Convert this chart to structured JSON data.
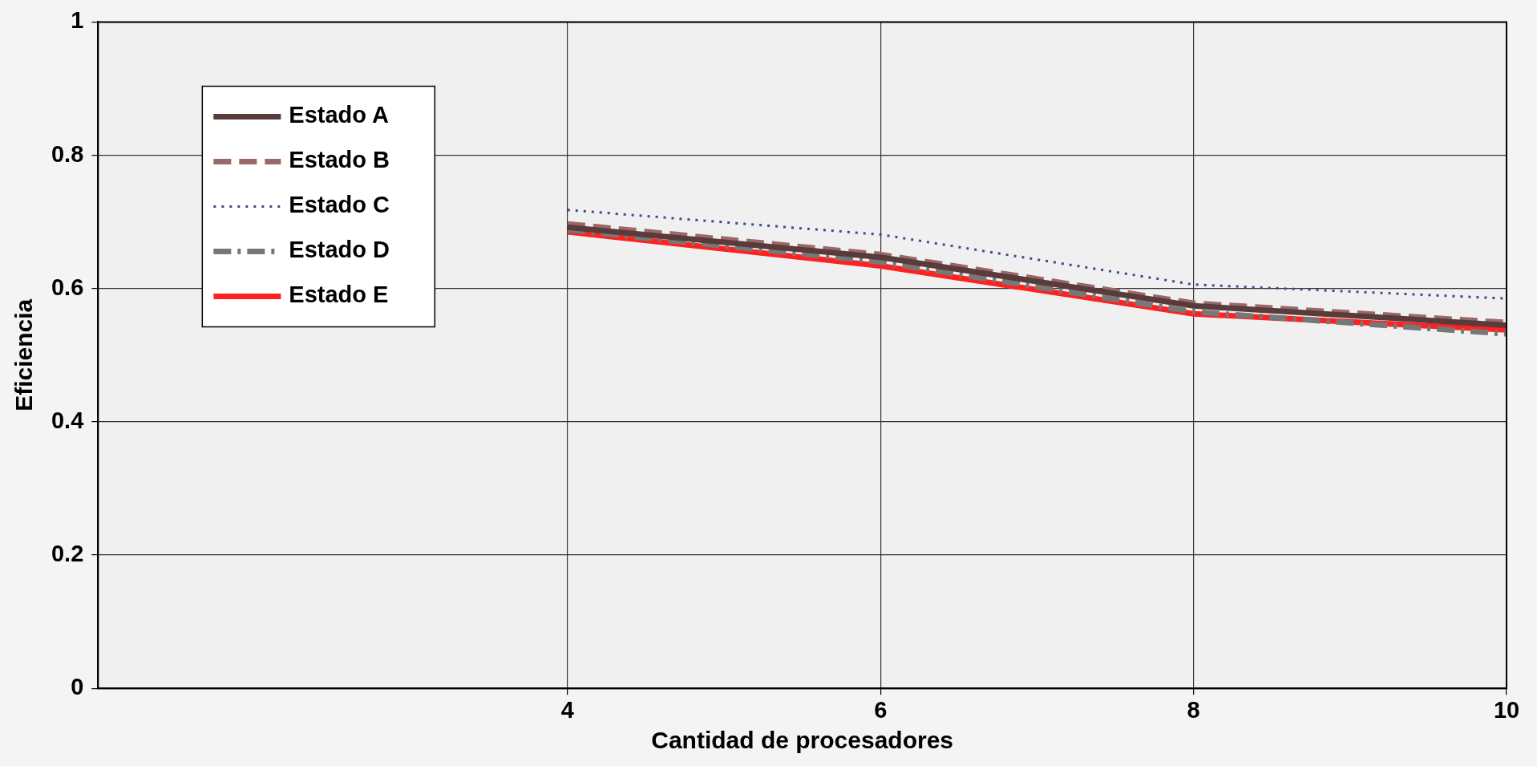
{
  "chart_data": {
    "type": "line",
    "xlabel": "Cantidad de procesadores",
    "ylabel": "Eficiencia",
    "x": [
      4,
      6,
      8,
      10
    ],
    "xlim": [
      1,
      10
    ],
    "xticks": [
      4,
      6,
      8,
      10
    ],
    "ylim": [
      0,
      1
    ],
    "yticks": [
      0,
      0.2,
      0.4,
      0.6,
      0.8,
      1
    ],
    "grid": true,
    "legend": "top left",
    "marker": "none",
    "series": [
      {
        "name": "Estado A",
        "color": "#5a3b3b",
        "line_style": "solid",
        "values": [
          0.692,
          0.647,
          0.574,
          0.545
        ]
      },
      {
        "name": "Estado B",
        "color": "#9a6868",
        "line_style": "dashed",
        "values": [
          0.697,
          0.651,
          0.578,
          0.549
        ]
      },
      {
        "name": "Estado C",
        "color": "#3c4c8c",
        "line_style": "dotted",
        "values": [
          0.718,
          0.681,
          0.606,
          0.585
        ]
      },
      {
        "name": "Estado D",
        "color": "#777777",
        "line_style": "dashdot",
        "values": [
          0.688,
          0.64,
          0.565,
          0.532
        ]
      },
      {
        "name": "Estado E",
        "color": "#ff2020",
        "line_style": "solid",
        "values": [
          0.685,
          0.634,
          0.562,
          0.538
        ]
      }
    ]
  }
}
